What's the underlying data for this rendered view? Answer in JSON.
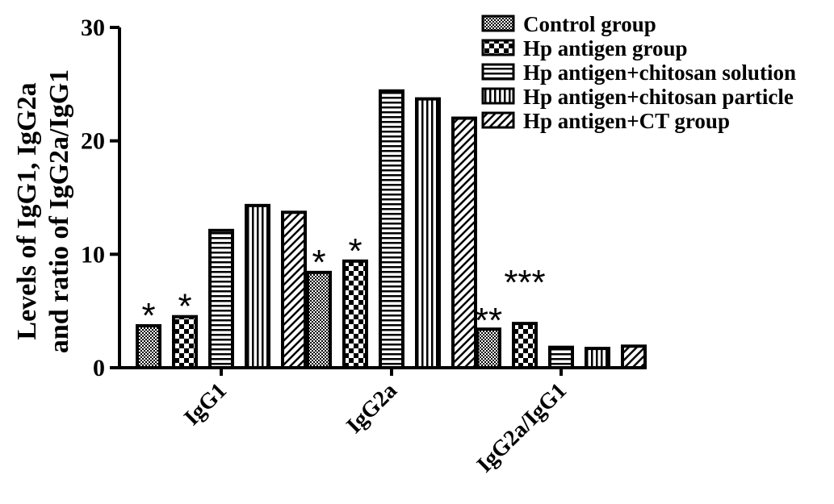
{
  "chart_data": {
    "type": "bar",
    "categories": [
      "IgG1",
      "IgG2a",
      "IgG2a/IgG1"
    ],
    "series": [
      {
        "name": "Control group",
        "values": [
          3.7,
          8.4,
          3.4
        ],
        "pattern": "dots"
      },
      {
        "name": "Hp antigen group",
        "values": [
          4.5,
          9.4,
          3.9
        ],
        "pattern": "checker"
      },
      {
        "name": "Hp antigen+chitosan solution",
        "values": [
          12.1,
          24.4,
          1.8
        ],
        "pattern": "hlines"
      },
      {
        "name": "Hp antigen+chitosan particle",
        "values": [
          14.3,
          23.7,
          1.7
        ],
        "pattern": "vlines"
      },
      {
        "name": "Hp antigen+CT group",
        "values": [
          13.7,
          22.0,
          1.9
        ],
        "pattern": "diag"
      }
    ],
    "annotations": [
      {
        "category": 0,
        "series": 0,
        "text": "*"
      },
      {
        "category": 0,
        "series": 1,
        "text": "*"
      },
      {
        "category": 1,
        "series": 0,
        "text": "*"
      },
      {
        "category": 1,
        "series": 1,
        "text": "*"
      },
      {
        "category": 2,
        "series": 0,
        "text": "**"
      },
      {
        "category": 2,
        "series": 1,
        "text": "***"
      }
    ],
    "ylabel_line1": "Levels of IgG1, IgG2a",
    "ylabel_line2": "and ratio of IgG2a/IgG1",
    "ylim": [
      0,
      30
    ],
    "yticks": [
      0,
      10,
      20,
      30
    ],
    "grid": false,
    "legend_position": "top-right"
  }
}
